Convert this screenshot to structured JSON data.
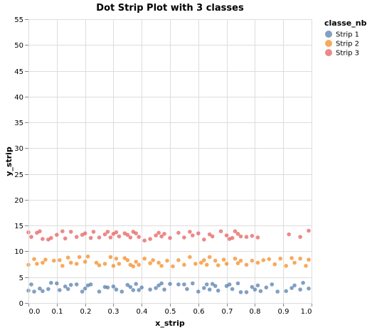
{
  "chart_data": {
    "type": "scatter",
    "title": "Dot Strip Plot with 3 classes",
    "xlabel": "x_strip",
    "ylabel": "y_strip",
    "xlim": [
      0,
      1
    ],
    "ylim": [
      0,
      55
    ],
    "x_ticks": [
      "0.0",
      "0.1",
      "0.2",
      "0.3",
      "0.4",
      "0.5",
      "0.6",
      "0.7",
      "0.8",
      "0.9",
      "1.0"
    ],
    "y_ticks": [
      "0",
      "5",
      "10",
      "15",
      "20",
      "25",
      "30",
      "35",
      "40",
      "45",
      "50",
      "55"
    ],
    "grid": true,
    "legend": {
      "title": "classe_nb",
      "position": "top-right",
      "entries": [
        "Strip 1",
        "Strip 2",
        "Strip 3"
      ]
    },
    "series": [
      {
        "name": "Strip 1",
        "color": "#4c78a8",
        "points": [
          [
            0.0,
            2.4
          ],
          [
            0.01,
            3.6
          ],
          [
            0.02,
            2.2
          ],
          [
            0.04,
            2.8
          ],
          [
            0.05,
            2.3
          ],
          [
            0.07,
            2.7
          ],
          [
            0.08,
            3.9
          ],
          [
            0.1,
            3.8
          ],
          [
            0.11,
            2.5
          ],
          [
            0.13,
            3.2
          ],
          [
            0.14,
            2.7
          ],
          [
            0.15,
            3.5
          ],
          [
            0.17,
            3.6
          ],
          [
            0.19,
            2.2
          ],
          [
            0.2,
            2.8
          ],
          [
            0.21,
            3.4
          ],
          [
            0.22,
            3.6
          ],
          [
            0.25,
            2.2
          ],
          [
            0.27,
            3.1
          ],
          [
            0.28,
            3.0
          ],
          [
            0.3,
            3.2
          ],
          [
            0.31,
            2.6
          ],
          [
            0.33,
            2.2
          ],
          [
            0.35,
            3.5
          ],
          [
            0.36,
            3.1
          ],
          [
            0.37,
            2.5
          ],
          [
            0.38,
            3.7
          ],
          [
            0.39,
            2.5
          ],
          [
            0.4,
            3.0
          ],
          [
            0.43,
            2.6
          ],
          [
            0.45,
            2.9
          ],
          [
            0.46,
            3.4
          ],
          [
            0.47,
            3.8
          ],
          [
            0.48,
            2.6
          ],
          [
            0.5,
            3.7
          ],
          [
            0.53,
            3.6
          ],
          [
            0.55,
            3.6
          ],
          [
            0.56,
            2.7
          ],
          [
            0.58,
            3.8
          ],
          [
            0.6,
            2.2
          ],
          [
            0.62,
            2.9
          ],
          [
            0.63,
            3.6
          ],
          [
            0.64,
            2.6
          ],
          [
            0.65,
            3.7
          ],
          [
            0.66,
            3.3
          ],
          [
            0.67,
            2.4
          ],
          [
            0.7,
            3.3
          ],
          [
            0.71,
            3.6
          ],
          [
            0.72,
            2.7
          ],
          [
            0.74,
            3.8
          ],
          [
            0.75,
            2.1
          ],
          [
            0.77,
            2.1
          ],
          [
            0.79,
            3.1
          ],
          [
            0.8,
            2.6
          ],
          [
            0.81,
            3.4
          ],
          [
            0.82,
            2.3
          ],
          [
            0.84,
            3.0
          ],
          [
            0.86,
            3.6
          ],
          [
            0.88,
            2.2
          ],
          [
            0.91,
            2.3
          ],
          [
            0.93,
            2.9
          ],
          [
            0.94,
            3.4
          ],
          [
            0.96,
            2.6
          ],
          [
            0.97,
            3.9
          ],
          [
            0.99,
            2.8
          ]
        ]
      },
      {
        "name": "Strip 2",
        "color": "#f58518",
        "points": [
          [
            0.0,
            7.4
          ],
          [
            0.02,
            8.5
          ],
          [
            0.03,
            7.6
          ],
          [
            0.05,
            7.8
          ],
          [
            0.06,
            8.4
          ],
          [
            0.09,
            8.2
          ],
          [
            0.11,
            8.3
          ],
          [
            0.12,
            7.2
          ],
          [
            0.14,
            8.8
          ],
          [
            0.15,
            7.8
          ],
          [
            0.17,
            7.6
          ],
          [
            0.18,
            8.9
          ],
          [
            0.2,
            8.0
          ],
          [
            0.21,
            9.0
          ],
          [
            0.24,
            7.8
          ],
          [
            0.25,
            7.3
          ],
          [
            0.27,
            7.6
          ],
          [
            0.29,
            8.9
          ],
          [
            0.3,
            7.2
          ],
          [
            0.31,
            8.6
          ],
          [
            0.32,
            7.6
          ],
          [
            0.34,
            8.7
          ],
          [
            0.35,
            8.3
          ],
          [
            0.36,
            7.4
          ],
          [
            0.37,
            7.1
          ],
          [
            0.38,
            8.0
          ],
          [
            0.39,
            7.4
          ],
          [
            0.41,
            8.6
          ],
          [
            0.43,
            7.7
          ],
          [
            0.44,
            8.3
          ],
          [
            0.46,
            7.8
          ],
          [
            0.47,
            7.2
          ],
          [
            0.49,
            8.2
          ],
          [
            0.51,
            7.1
          ],
          [
            0.53,
            8.3
          ],
          [
            0.55,
            7.4
          ],
          [
            0.57,
            8.9
          ],
          [
            0.59,
            7.6
          ],
          [
            0.61,
            7.8
          ],
          [
            0.62,
            8.3
          ],
          [
            0.63,
            7.4
          ],
          [
            0.64,
            8.9
          ],
          [
            0.66,
            8.2
          ],
          [
            0.67,
            7.3
          ],
          [
            0.69,
            8.4
          ],
          [
            0.7,
            7.6
          ],
          [
            0.73,
            8.6
          ],
          [
            0.74,
            7.7
          ],
          [
            0.75,
            8.2
          ],
          [
            0.77,
            7.4
          ],
          [
            0.79,
            8.2
          ],
          [
            0.81,
            7.8
          ],
          [
            0.83,
            8.3
          ],
          [
            0.85,
            8.5
          ],
          [
            0.87,
            7.5
          ],
          [
            0.89,
            8.6
          ],
          [
            0.91,
            7.2
          ],
          [
            0.93,
            8.7
          ],
          [
            0.94,
            7.8
          ],
          [
            0.96,
            8.6
          ],
          [
            0.98,
            7.2
          ],
          [
            0.99,
            8.4
          ]
        ]
      },
      {
        "name": "Strip 3",
        "color": "#e45756",
        "points": [
          [
            0.0,
            13.7
          ],
          [
            0.01,
            12.8
          ],
          [
            0.03,
            13.6
          ],
          [
            0.04,
            13.9
          ],
          [
            0.05,
            12.4
          ],
          [
            0.07,
            12.3
          ],
          [
            0.08,
            12.6
          ],
          [
            0.1,
            13.2
          ],
          [
            0.12,
            13.9
          ],
          [
            0.13,
            12.5
          ],
          [
            0.15,
            13.8
          ],
          [
            0.17,
            12.8
          ],
          [
            0.19,
            13.2
          ],
          [
            0.2,
            13.5
          ],
          [
            0.22,
            12.6
          ],
          [
            0.23,
            13.8
          ],
          [
            0.25,
            12.7
          ],
          [
            0.27,
            13.3
          ],
          [
            0.28,
            13.8
          ],
          [
            0.29,
            12.7
          ],
          [
            0.3,
            13.4
          ],
          [
            0.31,
            13.7
          ],
          [
            0.32,
            12.9
          ],
          [
            0.34,
            13.5
          ],
          [
            0.35,
            13.2
          ],
          [
            0.36,
            12.7
          ],
          [
            0.37,
            13.8
          ],
          [
            0.38,
            13.5
          ],
          [
            0.39,
            12.8
          ],
          [
            0.41,
            12.1
          ],
          [
            0.43,
            12.4
          ],
          [
            0.45,
            13.1
          ],
          [
            0.46,
            13.6
          ],
          [
            0.47,
            12.9
          ],
          [
            0.48,
            13.4
          ],
          [
            0.5,
            12.6
          ],
          [
            0.53,
            13.6
          ],
          [
            0.55,
            12.7
          ],
          [
            0.57,
            13.8
          ],
          [
            0.58,
            13.1
          ],
          [
            0.6,
            13.5
          ],
          [
            0.62,
            12.3
          ],
          [
            0.64,
            13.3
          ],
          [
            0.65,
            12.9
          ],
          [
            0.68,
            13.9
          ],
          [
            0.7,
            13.1
          ],
          [
            0.71,
            12.4
          ],
          [
            0.72,
            12.6
          ],
          [
            0.73,
            13.9
          ],
          [
            0.74,
            13.4
          ],
          [
            0.75,
            12.9
          ],
          [
            0.77,
            12.8
          ],
          [
            0.79,
            13.0
          ],
          [
            0.81,
            12.7
          ],
          [
            0.92,
            13.3
          ],
          [
            0.96,
            12.8
          ],
          [
            0.99,
            14.0
          ]
        ]
      }
    ]
  }
}
